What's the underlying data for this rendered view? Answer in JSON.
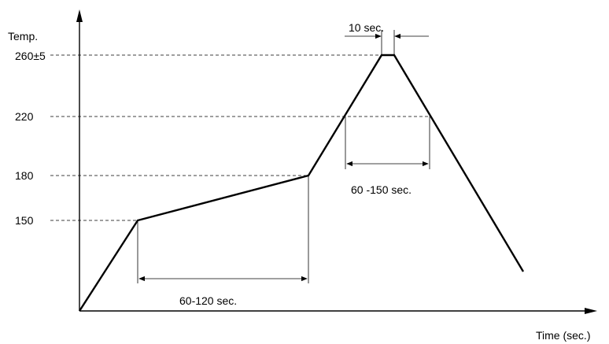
{
  "axes": {
    "y_label": "Temp.",
    "x_label": "Time (sec.)"
  },
  "temperature_levels": [
    {
      "label": "150",
      "value": 150
    },
    {
      "label": "180",
      "value": 180
    },
    {
      "label": "220",
      "value": 220
    },
    {
      "label": "260±5",
      "value": 260
    }
  ],
  "intervals": [
    {
      "label": "60-120 sec.",
      "between": [
        "150",
        "180"
      ]
    },
    {
      "label": "60 -150 sec.",
      "between": [
        "220 rising",
        "220 falling"
      ]
    },
    {
      "label": "10 sec.",
      "between": [
        "peak start",
        "peak end"
      ]
    }
  ]
}
